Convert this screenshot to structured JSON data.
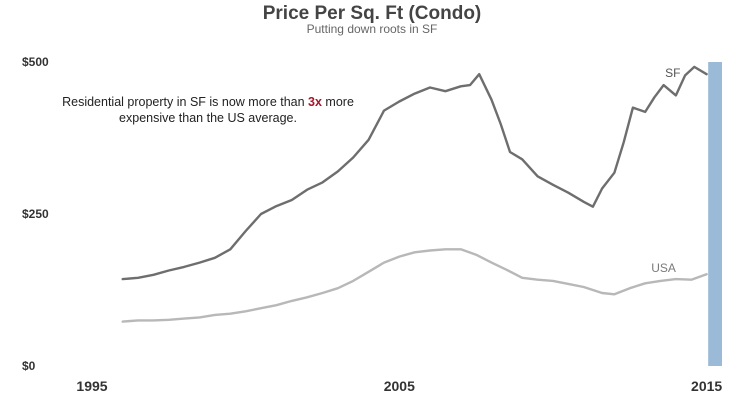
{
  "chart_data": {
    "type": "line",
    "title": "Price Per Sq. Ft (Condo)",
    "subtitle": "Putting down roots in SF",
    "xlabel": "",
    "ylabel": "",
    "xlim": [
      1995,
      2015.5
    ],
    "ylim": [
      0,
      500
    ],
    "x_ticks": [
      1995,
      2005,
      2015
    ],
    "x_tick_labels": [
      "1995",
      "2005",
      "2015"
    ],
    "y_ticks": [
      0,
      250,
      500
    ],
    "y_tick_labels": [
      "$0",
      "$250",
      "$500"
    ],
    "grid": false,
    "legend": "none",
    "series": [
      {
        "name": "SF",
        "color": "#6e6e6e",
        "x": [
          1996.0,
          1996.5,
          1997.0,
          1997.5,
          1998.0,
          1998.5,
          1999.0,
          1999.5,
          2000.0,
          2000.5,
          2001.0,
          2001.5,
          2002.0,
          2002.5,
          2003.0,
          2003.5,
          2004.0,
          2004.5,
          2005.0,
          2005.5,
          2006.0,
          2006.5,
          2007.0,
          2007.3,
          2007.6,
          2008.0,
          2008.3,
          2008.6,
          2009.0,
          2009.5,
          2010.0,
          2010.5,
          2011.0,
          2011.3,
          2011.6,
          2012.0,
          2012.3,
          2012.6,
          2013.0,
          2013.3,
          2013.6,
          2014.0,
          2014.3,
          2014.6,
          2015.0
        ],
        "values": [
          143,
          145,
          150,
          157,
          163,
          170,
          178,
          192,
          222,
          250,
          263,
          273,
          290,
          302,
          320,
          343,
          372,
          420,
          435,
          448,
          458,
          452,
          460,
          462,
          480,
          438,
          398,
          352,
          340,
          312,
          298,
          285,
          270,
          262,
          292,
          318,
          368,
          425,
          418,
          442,
          462,
          445,
          478,
          492,
          480
        ]
      },
      {
        "name": "USA",
        "color": "#b8b8b8",
        "x": [
          1996.0,
          1996.5,
          1997.0,
          1997.5,
          1998.0,
          1998.5,
          1999.0,
          1999.5,
          2000.0,
          2000.5,
          2001.0,
          2001.5,
          2002.0,
          2002.5,
          2003.0,
          2003.5,
          2004.0,
          2004.5,
          2005.0,
          2005.5,
          2006.0,
          2006.5,
          2007.0,
          2007.5,
          2008.0,
          2008.5,
          2009.0,
          2009.5,
          2010.0,
          2010.5,
          2011.0,
          2011.3,
          2011.6,
          2012.0,
          2012.5,
          2013.0,
          2013.5,
          2014.0,
          2014.5,
          2015.0
        ],
        "values": [
          73,
          75,
          75,
          76,
          78,
          80,
          84,
          86,
          90,
          95,
          100,
          107,
          113,
          120,
          128,
          140,
          155,
          170,
          180,
          187,
          190,
          192,
          192,
          183,
          170,
          158,
          145,
          142,
          140,
          135,
          130,
          125,
          120,
          118,
          128,
          136,
          140,
          143,
          142,
          151
        ]
      }
    ],
    "annotations": {
      "line1_prefix": "Residential property in SF is now more than ",
      "line1_highlight": "3x",
      "line1_suffix": " more",
      "line2": "expensive than the US average."
    },
    "highlight_band": {
      "from": 2015.05,
      "to": 2015.5,
      "color": "#9bbad7"
    },
    "series_label_positions": [
      {
        "series": "SF",
        "x": 2013.9,
        "y": 475
      },
      {
        "series": "USA",
        "x": 2013.6,
        "y": 155
      }
    ]
  }
}
